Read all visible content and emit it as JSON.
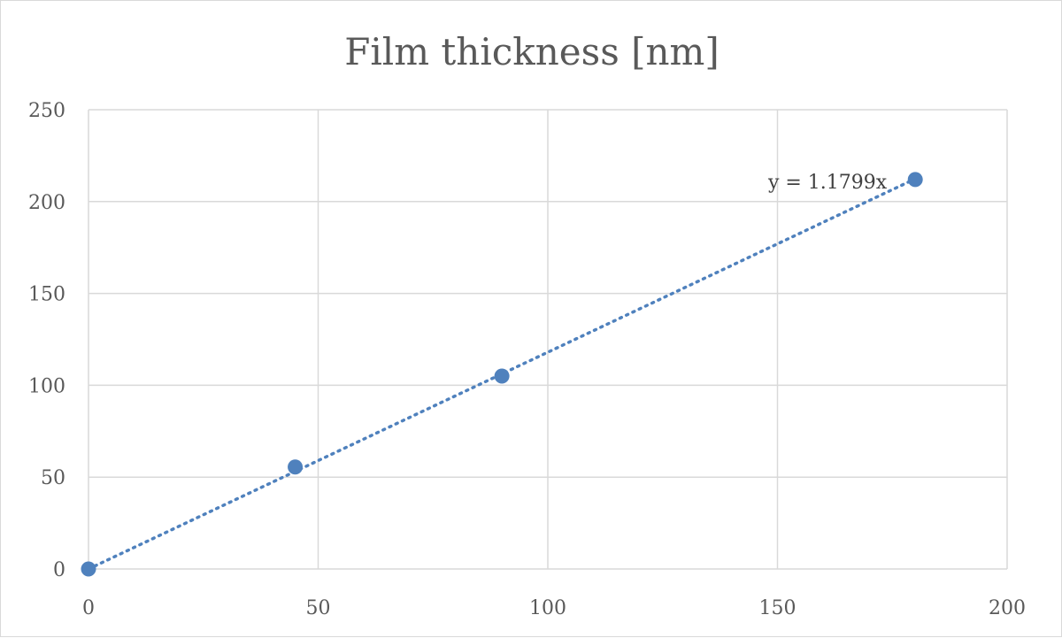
{
  "chart_data": {
    "type": "scatter",
    "title": "Film thickness [nm]",
    "xlabel": "",
    "ylabel": "",
    "xlim": [
      0,
      200
    ],
    "ylim": [
      0,
      250
    ],
    "xticks": [
      0,
      50,
      100,
      150,
      200
    ],
    "yticks": [
      0,
      50,
      100,
      150,
      200,
      250
    ],
    "grid": true,
    "legend": "none",
    "series": [
      {
        "x": [
          0,
          45,
          90,
          180
        ],
        "y": [
          0,
          55.5,
          105,
          212
        ],
        "color": "#4f81bd"
      }
    ],
    "trendline": {
      "type": "linear",
      "slope": 1.1799,
      "intercept": 0,
      "x_range": [
        0,
        180
      ],
      "style": "dotted",
      "color": "#4f81bd",
      "equation_label": "y = 1.1799x"
    }
  }
}
